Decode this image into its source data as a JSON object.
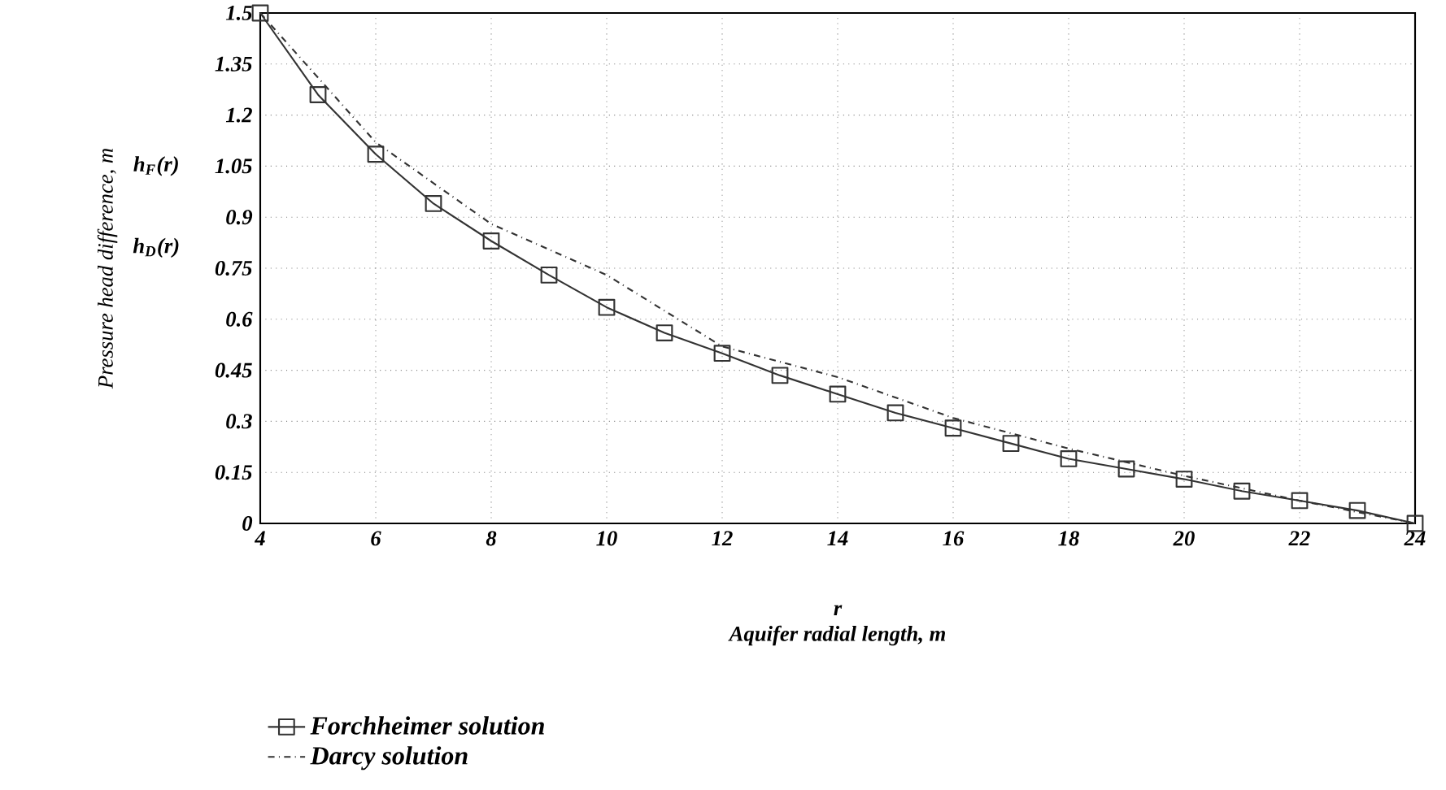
{
  "chart_data": {
    "type": "line",
    "xlabel": "Aquifer radial length, m",
    "ylabel": "Pressure head difference, m",
    "annotations": [
      "r",
      "h$_{F}$(r)",
      "h$_{D}$(r)"
    ],
    "x": [
      4,
      5,
      6,
      7,
      8,
      9,
      10,
      11,
      12,
      13,
      14,
      15,
      16,
      17,
      18,
      19,
      20,
      21,
      22,
      23,
      24
    ],
    "series": [
      {
        "name": "Forchheimer solution",
        "color": "#333333",
        "marker": "square",
        "line_style": "solid",
        "values": [
          1.5,
          1.26,
          1.085,
          0.94,
          0.83,
          0.73,
          0.635,
          0.56,
          0.5,
          0.435,
          0.38,
          0.325,
          0.28,
          0.235,
          0.19,
          0.16,
          0.13,
          0.095,
          0.067,
          0.038,
          0
        ]
      },
      {
        "name": "Darcy solution",
        "color": "#333333",
        "marker": "none",
        "line_style": "dashed",
        "x": [
          4,
          6,
          8,
          10,
          12,
          14,
          16,
          18,
          20,
          22,
          24
        ],
        "values": [
          1.5,
          1.12,
          0.88,
          0.73,
          0.52,
          0.43,
          0.31,
          0.22,
          0.14,
          0.067,
          0
        ]
      }
    ],
    "xlim": [
      4,
      24
    ],
    "ylim": [
      0,
      1.5
    ],
    "xticks": [
      4,
      6,
      8,
      10,
      12,
      14,
      16,
      18,
      20,
      22,
      24
    ],
    "yticks": [
      0,
      0.15,
      0.3,
      0.45,
      0.6,
      0.75,
      0.9,
      1.05,
      1.2,
      1.35,
      1.5
    ],
    "grid": true,
    "legend": "bottom"
  }
}
